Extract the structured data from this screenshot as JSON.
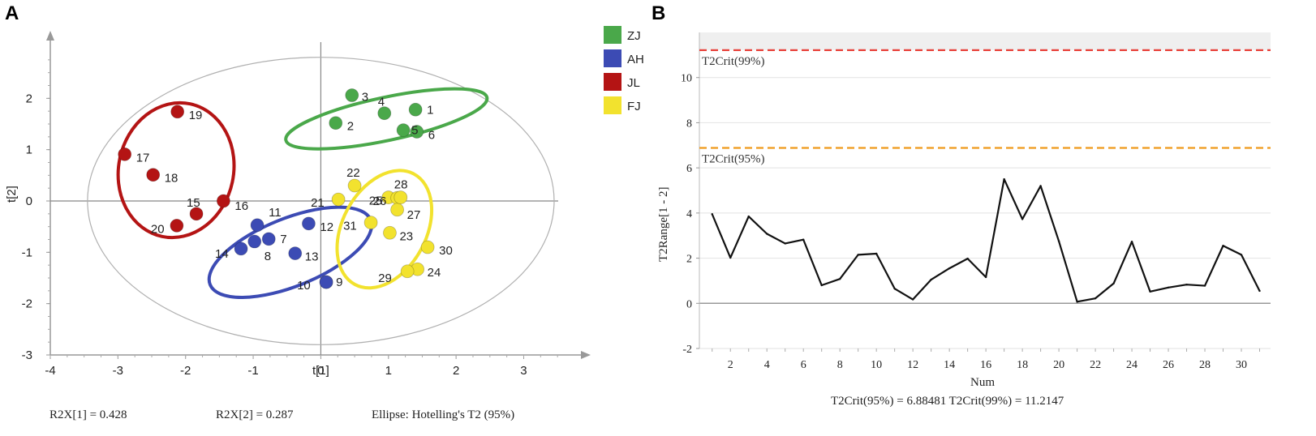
{
  "panels": {
    "a_label": "A",
    "b_label": "B"
  },
  "colors": {
    "ZJ": "#4aa84a",
    "AH": "#3c4bb4",
    "JL": "#b41414",
    "FJ": "#f2e22e",
    "ZJ_text": "#3e8f3e",
    "AH_text": "#34409a",
    "JL_text": "#9a1a1a",
    "FJ_text": "#b8a21c",
    "crit99": "#e8413a",
    "crit95": "#ef9a1c"
  },
  "chart_data": [
    {
      "type": "scatter",
      "title": "",
      "xlabel": "t[1]",
      "ylabel": "t[2]",
      "xlim": [
        -4,
        3.75
      ],
      "ylim": [
        -3,
        3
      ],
      "xticks": [
        -4,
        -3,
        -2,
        -1,
        0,
        1,
        2,
        3
      ],
      "yticks": [
        -3,
        -2,
        -1,
        0,
        1,
        2
      ],
      "hotelling_ellipse": {
        "cx": 0,
        "cy": 0,
        "rx": 3.45,
        "ry": 2.8
      },
      "legend": [
        {
          "name": "ZJ",
          "color_key": "ZJ"
        },
        {
          "name": "AH",
          "color_key": "AH"
        },
        {
          "name": "JL",
          "color_key": "JL"
        },
        {
          "name": "FJ",
          "color_key": "FJ"
        }
      ],
      "series": [
        {
          "name": "ZJ",
          "points": [
            {
              "label": "1",
              "x": 1.4,
              "y": 1.78
            },
            {
              "label": "2",
              "x": 0.22,
              "y": 1.52
            },
            {
              "label": "3",
              "x": 0.46,
              "y": 2.06
            },
            {
              "label": "4",
              "x": 0.94,
              "y": 1.71
            },
            {
              "label": "5",
              "x": 1.22,
              "y": 1.38
            },
            {
              "label": "6",
              "x": 1.42,
              "y": 1.35
            }
          ],
          "group_ellipse": {
            "cx": 0.97,
            "cy": 1.6,
            "rx": 1.52,
            "ry": 0.42,
            "angle_deg": 12
          }
        },
        {
          "name": "AH",
          "points": [
            {
              "label": "7",
              "x": -0.77,
              "y": -0.74
            },
            {
              "label": "8",
              "x": -0.98,
              "y": -0.79
            },
            {
              "label": "9",
              "x": 0.08,
              "y": -1.58
            },
            {
              "label": "10",
              "x": 0.08,
              "y": -1.58
            },
            {
              "label": "11",
              "x": -0.94,
              "y": -0.47
            },
            {
              "label": "12",
              "x": -0.18,
              "y": -0.44
            },
            {
              "label": "13",
              "x": -0.38,
              "y": -1.02
            },
            {
              "label": "14",
              "x": -1.18,
              "y": -0.93
            }
          ],
          "group_ellipse": {
            "cx": -0.45,
            "cy": -1.0,
            "rx": 1.28,
            "ry": 0.66,
            "angle_deg": 22
          }
        },
        {
          "name": "JL",
          "points": [
            {
              "label": "15",
              "x": -1.84,
              "y": -0.25
            },
            {
              "label": "16",
              "x": -1.44,
              "y": 0.0
            },
            {
              "label": "17",
              "x": -2.9,
              "y": 0.91
            },
            {
              "label": "18",
              "x": -2.48,
              "y": 0.51
            },
            {
              "label": "19",
              "x": -2.12,
              "y": 1.74
            },
            {
              "label": "20",
              "x": -2.13,
              "y": -0.48
            }
          ],
          "group_ellipse": {
            "cx": -2.14,
            "cy": 0.6,
            "rx": 0.85,
            "ry": 1.32,
            "angle_deg": -12
          }
        },
        {
          "name": "FJ",
          "points": [
            {
              "label": "21",
              "x": 0.26,
              "y": 0.03
            },
            {
              "label": "22",
              "x": 0.5,
              "y": 0.3
            },
            {
              "label": "23",
              "x": 1.02,
              "y": -0.62
            },
            {
              "label": "24",
              "x": 1.43,
              "y": -1.33
            },
            {
              "label": "25",
              "x": 1.0,
              "y": 0.07
            },
            {
              "label": "26",
              "x": 1.13,
              "y": 0.06
            },
            {
              "label": "27",
              "x": 1.13,
              "y": -0.17
            },
            {
              "label": "28",
              "x": 1.18,
              "y": 0.07
            },
            {
              "label": "29",
              "x": 1.28,
              "y": -1.37
            },
            {
              "label": "30",
              "x": 1.58,
              "y": -0.9
            },
            {
              "label": "31",
              "x": 0.74,
              "y": -0.42
            }
          ],
          "group_ellipse": {
            "cx": 0.94,
            "cy": -0.55,
            "rx": 0.62,
            "ry": 1.22,
            "angle_deg": -28
          }
        }
      ],
      "footer": {
        "r2x1": "R2X[1] = 0.428",
        "r2x2": "R2X[2] = 0.287",
        "ellipse_note": "Ellipse: Hotelling's T2 (95%)"
      }
    },
    {
      "type": "line",
      "title": "",
      "xlabel": "Num",
      "ylabel": "T2Range[1 - 2]",
      "xlim": [
        0.3,
        31.6
      ],
      "ylim": [
        -2,
        12
      ],
      "xticks": [
        2,
        4,
        6,
        8,
        10,
        12,
        14,
        16,
        18,
        20,
        22,
        24,
        26,
        28,
        30
      ],
      "yticks": [
        -2,
        0,
        2,
        4,
        6,
        8,
        10
      ],
      "x": [
        1,
        2,
        3,
        4,
        5,
        6,
        7,
        8,
        9,
        10,
        11,
        12,
        13,
        14,
        15,
        16,
        17,
        18,
        19,
        20,
        21,
        22,
        23,
        24,
        25,
        26,
        27,
        28,
        29,
        30,
        31
      ],
      "values": [
        3.95,
        2.02,
        3.85,
        3.08,
        2.65,
        2.82,
        0.8,
        1.08,
        2.15,
        2.2,
        0.65,
        0.17,
        1.05,
        1.55,
        1.98,
        1.16,
        5.5,
        3.73,
        5.2,
        2.75,
        0.07,
        0.22,
        0.88,
        2.73,
        0.52,
        0.7,
        0.83,
        0.78,
        2.55,
        2.15,
        0.55
      ],
      "thresholds": [
        {
          "name": "T2Crit(99%)",
          "value": 11.2147,
          "label": "T2Crit(99%)",
          "color_key": "crit99"
        },
        {
          "name": "T2Crit(95%)",
          "value": 6.88481,
          "label": "T2Crit(95%)",
          "color_key": "crit95"
        }
      ],
      "footer": "T2Crit(95%) = 6.88481 T2Crit(99%) = 11.2147"
    }
  ]
}
